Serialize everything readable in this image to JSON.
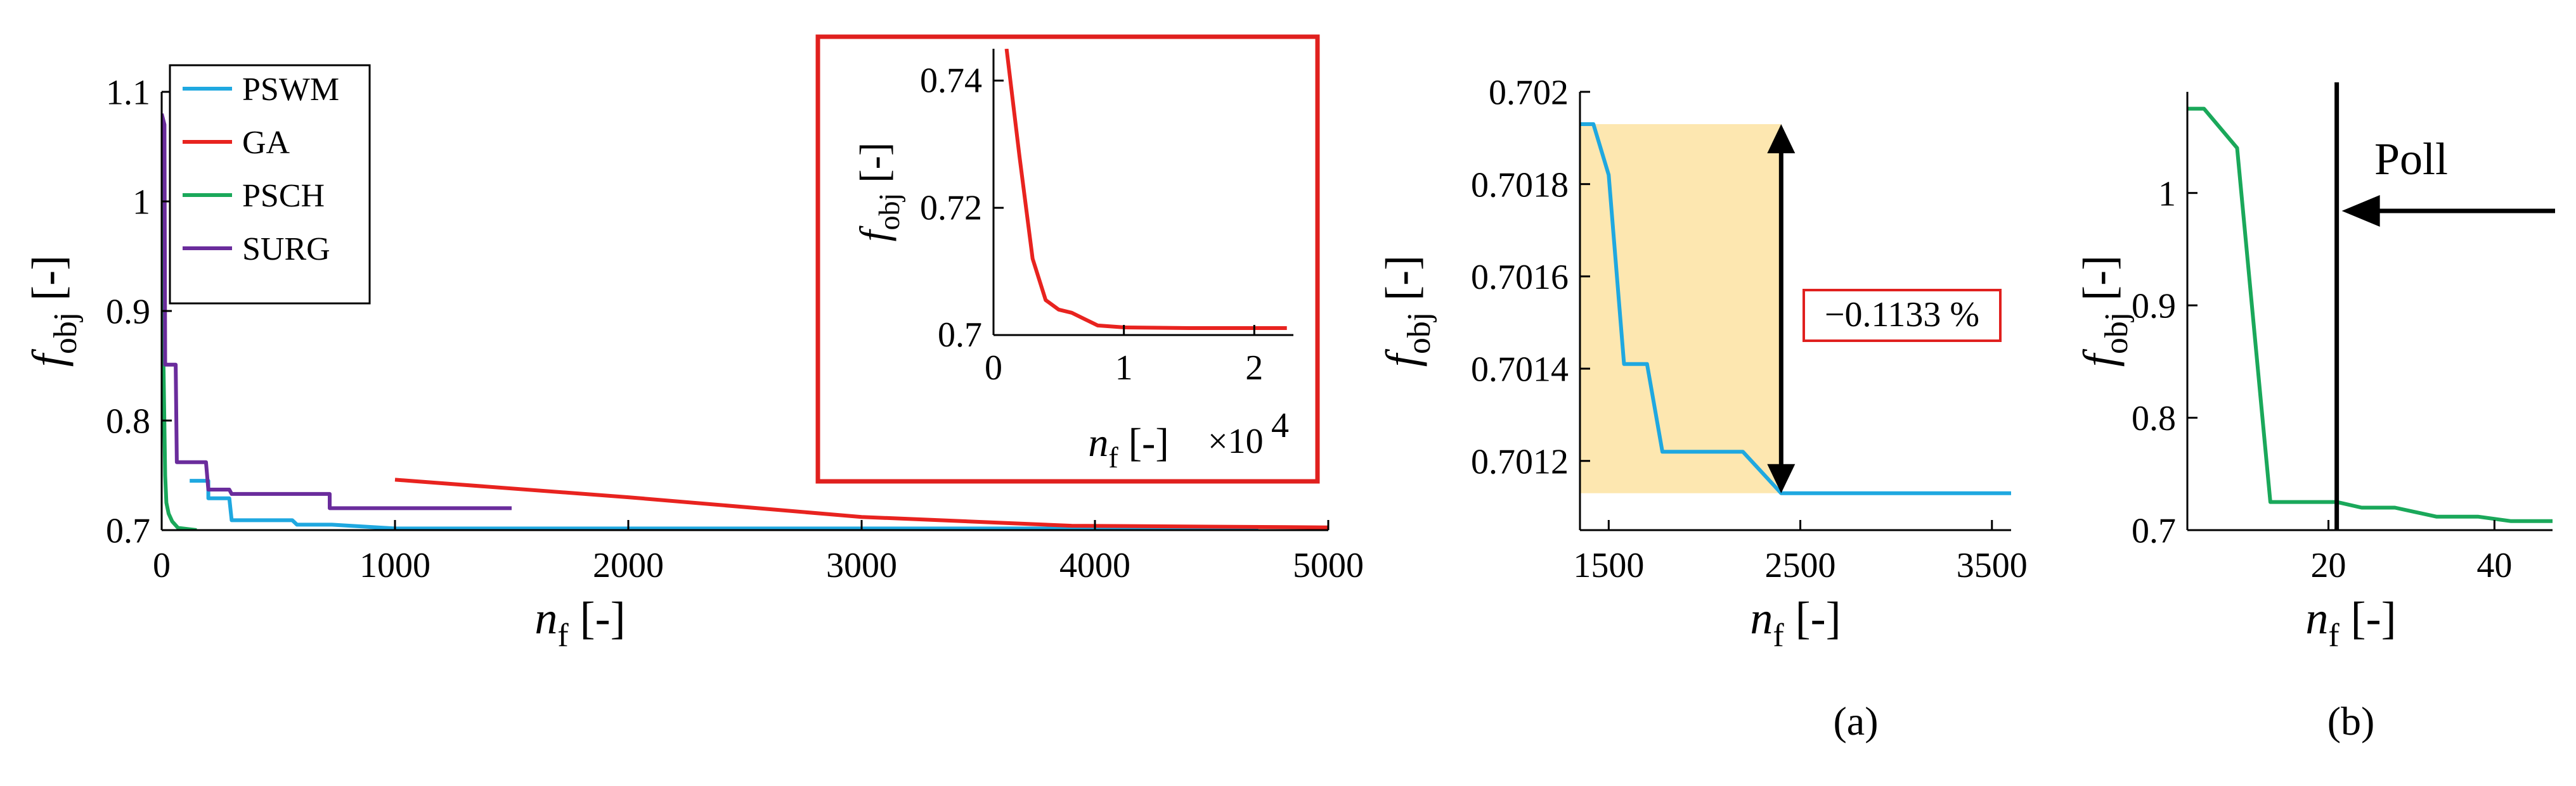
{
  "chart_data": [
    {
      "id": "main",
      "type": "line",
      "xlabel": "n_f [-]",
      "ylabel": "f_obj [-]",
      "xlim": [
        0,
        5000
      ],
      "ylim": [
        0.7,
        1.1
      ],
      "xticks": [
        0,
        1000,
        2000,
        3000,
        4000,
        5000
      ],
      "yticks": [
        0.7,
        0.8,
        0.9,
        1,
        1.1
      ],
      "xtick_labels": [
        "0",
        "1000",
        "2000",
        "3000",
        "4000",
        "5000"
      ],
      "ytick_labels": [
        "0.7",
        "0.8",
        "0.9",
        "1",
        "1.1"
      ],
      "legend_position": "top-left",
      "series": [
        {
          "name": "PSWM",
          "color": "#1fa8e0",
          "x": [
            120,
            200,
            200,
            290,
            300,
            560,
            580,
            730,
            1000,
            4700
          ],
          "y": [
            0.745,
            0.745,
            0.729,
            0.729,
            0.709,
            0.709,
            0.705,
            0.705,
            0.7015,
            0.7015
          ]
        },
        {
          "name": "GA",
          "color": "#e8231f",
          "x": [
            1000,
            2000,
            3000,
            3900,
            5000
          ],
          "y": [
            0.746,
            0.73,
            0.712,
            0.704,
            0.7025
          ]
        },
        {
          "name": "PSCH",
          "color": "#1aa85a",
          "x": [
            0,
            3,
            8,
            15,
            20,
            30,
            45,
            70,
            150
          ],
          "y": [
            1.075,
            1.07,
            0.85,
            0.75,
            0.725,
            0.715,
            0.708,
            0.702,
            0.7
          ]
        },
        {
          "name": "SURG",
          "color": "#6a2c9c",
          "x": [
            0,
            12,
            15,
            60,
            65,
            190,
            200,
            290,
            300,
            720,
            720,
            1500
          ],
          "y": [
            1.08,
            1.07,
            0.851,
            0.851,
            0.762,
            0.762,
            0.737,
            0.737,
            0.733,
            0.733,
            0.72,
            0.72
          ]
        }
      ]
    },
    {
      "id": "inset",
      "type": "line",
      "xlabel": "n_f [-]",
      "ylabel": "f_obj [-]",
      "x_multiplier": "×10^4",
      "xlim": [
        0,
        2.3
      ],
      "ylim": [
        0.7,
        0.745
      ],
      "xticks": [
        0,
        1,
        2
      ],
      "yticks": [
        0.7,
        0.72,
        0.74
      ],
      "xtick_labels": [
        "0",
        "1",
        "2"
      ],
      "ytick_labels": [
        "0.7",
        "0.72",
        "0.74"
      ],
      "series": [
        {
          "name": "GA",
          "color": "#e8231f",
          "x": [
            0.1,
            0.2,
            0.3,
            0.4,
            0.5,
            0.6,
            0.7,
            0.8,
            1.0,
            1.5,
            2.25
          ],
          "y": [
            0.745,
            0.728,
            0.712,
            0.7055,
            0.704,
            0.7035,
            0.7025,
            0.7015,
            0.7012,
            0.7011,
            0.7011
          ]
        }
      ]
    },
    {
      "id": "a",
      "type": "line",
      "caption": "(a)",
      "xlabel": "n_f [-]",
      "ylabel": "f_obj [-]",
      "xlim": [
        1350,
        3600
      ],
      "ylim": [
        0.70105,
        0.702
      ],
      "xticks": [
        1500,
        2500,
        3500
      ],
      "yticks": [
        0.7012,
        0.7014,
        0.7016,
        0.7018,
        0.702
      ],
      "xtick_labels": [
        "1500",
        "2500",
        "3500"
      ],
      "ytick_labels": [
        "0.7012",
        "0.7014",
        "0.7016",
        "0.7018",
        "0.702"
      ],
      "shaded_region": {
        "x": [
          1350,
          2400
        ],
        "y": [
          0.70113,
          0.70193
        ],
        "color": "#fde7b0"
      },
      "annotation": {
        "text": "−0.1133 %",
        "x": 2400,
        "y_top": 0.70193,
        "y_bottom": 0.70113
      },
      "series": [
        {
          "name": "PSWM",
          "color": "#1fa8e0",
          "x": [
            1350,
            1420,
            1500,
            1580,
            1700,
            1780,
            2200,
            2400,
            2500,
            2800,
            3600
          ],
          "y": [
            0.70193,
            0.70193,
            0.70182,
            0.70141,
            0.70141,
            0.70122,
            0.70122,
            0.70113,
            0.70113,
            0.70113,
            0.70113
          ]
        }
      ]
    },
    {
      "id": "b",
      "type": "line",
      "caption": "(b)",
      "xlabel": "n_f [-]",
      "ylabel": "f_obj [-]",
      "xlim": [
        3,
        47
      ],
      "ylim": [
        0.7,
        1.09
      ],
      "xticks": [
        20,
        40
      ],
      "yticks": [
        0.7,
        0.8,
        0.9,
        1
      ],
      "xtick_labels": [
        "20",
        "40"
      ],
      "ytick_labels": [
        "0.7",
        "0.8",
        "0.9",
        "1"
      ],
      "annotation": {
        "text": "Poll",
        "x": 21
      },
      "series": [
        {
          "name": "PSCH",
          "color": "#1aa85a",
          "x": [
            3,
            5,
            9,
            13,
            21,
            24,
            28,
            33,
            38,
            42,
            47
          ],
          "y": [
            1.075,
            1.075,
            1.04,
            0.725,
            0.725,
            0.72,
            0.72,
            0.712,
            0.712,
            0.708,
            0.708
          ]
        }
      ]
    }
  ]
}
